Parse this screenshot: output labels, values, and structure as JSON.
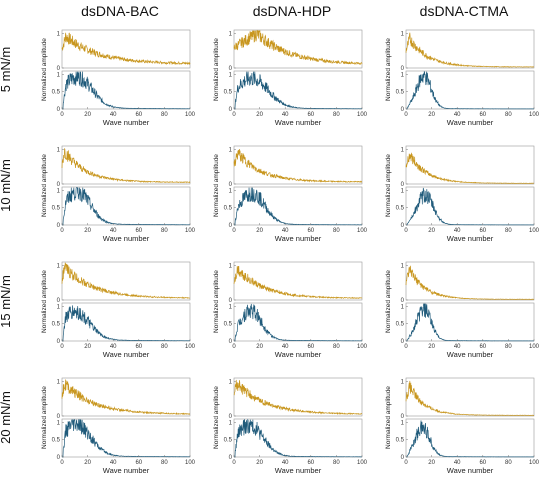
{
  "figure": {
    "columns": [
      "dsDNA-BAC",
      "dsDNA-HDP",
      "dsDNA-CTMA"
    ],
    "rows": [
      "5 mN/m",
      "10 mN/m",
      "15 mN/m",
      "20 mN/m"
    ],
    "xlabel": "Wave number",
    "ylabel": "Normalized amplitude",
    "x_ticks": [
      "0",
      "20",
      "40",
      "60",
      "80",
      "100"
    ],
    "y_ticks_top": [
      "0",
      "1"
    ],
    "y_ticks_bottom": [
      "0",
      "0.5",
      "1"
    ]
  },
  "colors": {
    "top_series": "#c8961e",
    "bottom_series": "#1f5a7a"
  },
  "chart_data": {
    "type": "line",
    "xlim": [
      0,
      100
    ],
    "ylim": [
      0,
      1.1
    ],
    "note_series": "Each cell has two stacked subplots: top (gold) and bottom (blue) amplitude spectra",
    "panels": [
      {
        "column": "dsDNA-BAC",
        "row": "5 mN/m",
        "top": {
          "shape": "decay",
          "start": 0.92,
          "peak_x": 3,
          "rate": 0.04,
          "floor": 0.12
        },
        "bottom": {
          "shape": "hump",
          "peak": 0.9,
          "peak_x": 12,
          "width": 16,
          "tail": 0.05
        }
      },
      {
        "column": "dsDNA-HDP",
        "row": "5 mN/m",
        "top": {
          "shape": "hump",
          "start": 1.0,
          "peak_x": 18,
          "rate": 0.04,
          "floor": 0.1
        },
        "bottom": {
          "shape": "hump",
          "peak": 0.85,
          "peak_x": 14,
          "width": 18,
          "tail": 0.05
        }
      },
      {
        "column": "dsDNA-CTMA",
        "row": "5 mN/m",
        "top": {
          "shape": "decay",
          "start": 0.85,
          "peak_x": 3,
          "rate": 0.07,
          "floor": 0.03
        },
        "bottom": {
          "shape": "hump",
          "peak": 0.95,
          "peak_x": 14,
          "width": 8,
          "tail": 0.02
        }
      },
      {
        "column": "dsDNA-BAC",
        "row": "10 mN/m",
        "top": {
          "shape": "decay",
          "start": 0.95,
          "peak_x": 2,
          "rate": 0.06,
          "floor": 0.05
        },
        "bottom": {
          "shape": "hump",
          "peak": 0.95,
          "peak_x": 12,
          "width": 14,
          "tail": 0.05
        }
      },
      {
        "column": "dsDNA-HDP",
        "row": "10 mN/m",
        "top": {
          "shape": "decay",
          "start": 0.9,
          "peak_x": 3,
          "rate": 0.055,
          "floor": 0.06
        },
        "bottom": {
          "shape": "hump",
          "peak": 0.9,
          "peak_x": 14,
          "width": 14,
          "tail": 0.04
        }
      },
      {
        "column": "dsDNA-CTMA",
        "row": "10 mN/m",
        "top": {
          "shape": "decay",
          "start": 0.85,
          "peak_x": 3,
          "rate": 0.075,
          "floor": 0.02
        },
        "bottom": {
          "shape": "hump",
          "peak": 0.85,
          "peak_x": 15,
          "width": 9,
          "tail": 0.02
        }
      },
      {
        "column": "dsDNA-BAC",
        "row": "15 mN/m",
        "top": {
          "shape": "decay",
          "start": 0.95,
          "peak_x": 2,
          "rate": 0.045,
          "floor": 0.05
        },
        "bottom": {
          "shape": "hump",
          "peak": 0.8,
          "peak_x": 10,
          "width": 16,
          "tail": 0.05
        }
      },
      {
        "column": "dsDNA-HDP",
        "row": "15 mN/m",
        "top": {
          "shape": "decay",
          "start": 0.9,
          "peak_x": 3,
          "rate": 0.05,
          "floor": 0.05
        },
        "bottom": {
          "shape": "hump",
          "peak": 0.85,
          "peak_x": 13,
          "width": 12,
          "tail": 0.04
        }
      },
      {
        "column": "dsDNA-CTMA",
        "row": "15 mN/m",
        "top": {
          "shape": "decay",
          "start": 0.85,
          "peak_x": 3,
          "rate": 0.08,
          "floor": 0.02
        },
        "bottom": {
          "shape": "hump",
          "peak": 0.9,
          "peak_x": 14,
          "width": 8,
          "tail": 0.02
        }
      },
      {
        "column": "dsDNA-BAC",
        "row": "20 mN/m",
        "top": {
          "shape": "decay",
          "start": 0.95,
          "peak_x": 2,
          "rate": 0.045,
          "floor": 0.05
        },
        "bottom": {
          "shape": "hump",
          "peak": 0.9,
          "peak_x": 11,
          "width": 16,
          "tail": 0.05
        }
      },
      {
        "column": "dsDNA-HDP",
        "row": "20 mN/m",
        "top": {
          "shape": "decay",
          "start": 0.95,
          "peak_x": 2,
          "rate": 0.045,
          "floor": 0.05
        },
        "bottom": {
          "shape": "hump",
          "peak": 0.9,
          "peak_x": 12,
          "width": 15,
          "tail": 0.04
        }
      },
      {
        "column": "dsDNA-CTMA",
        "row": "20 mN/m",
        "top": {
          "shape": "decay",
          "start": 0.85,
          "peak_x": 3,
          "rate": 0.085,
          "floor": 0.02
        },
        "bottom": {
          "shape": "hump",
          "peak": 0.85,
          "peak_x": 13,
          "width": 8,
          "tail": 0.02
        }
      }
    ]
  }
}
